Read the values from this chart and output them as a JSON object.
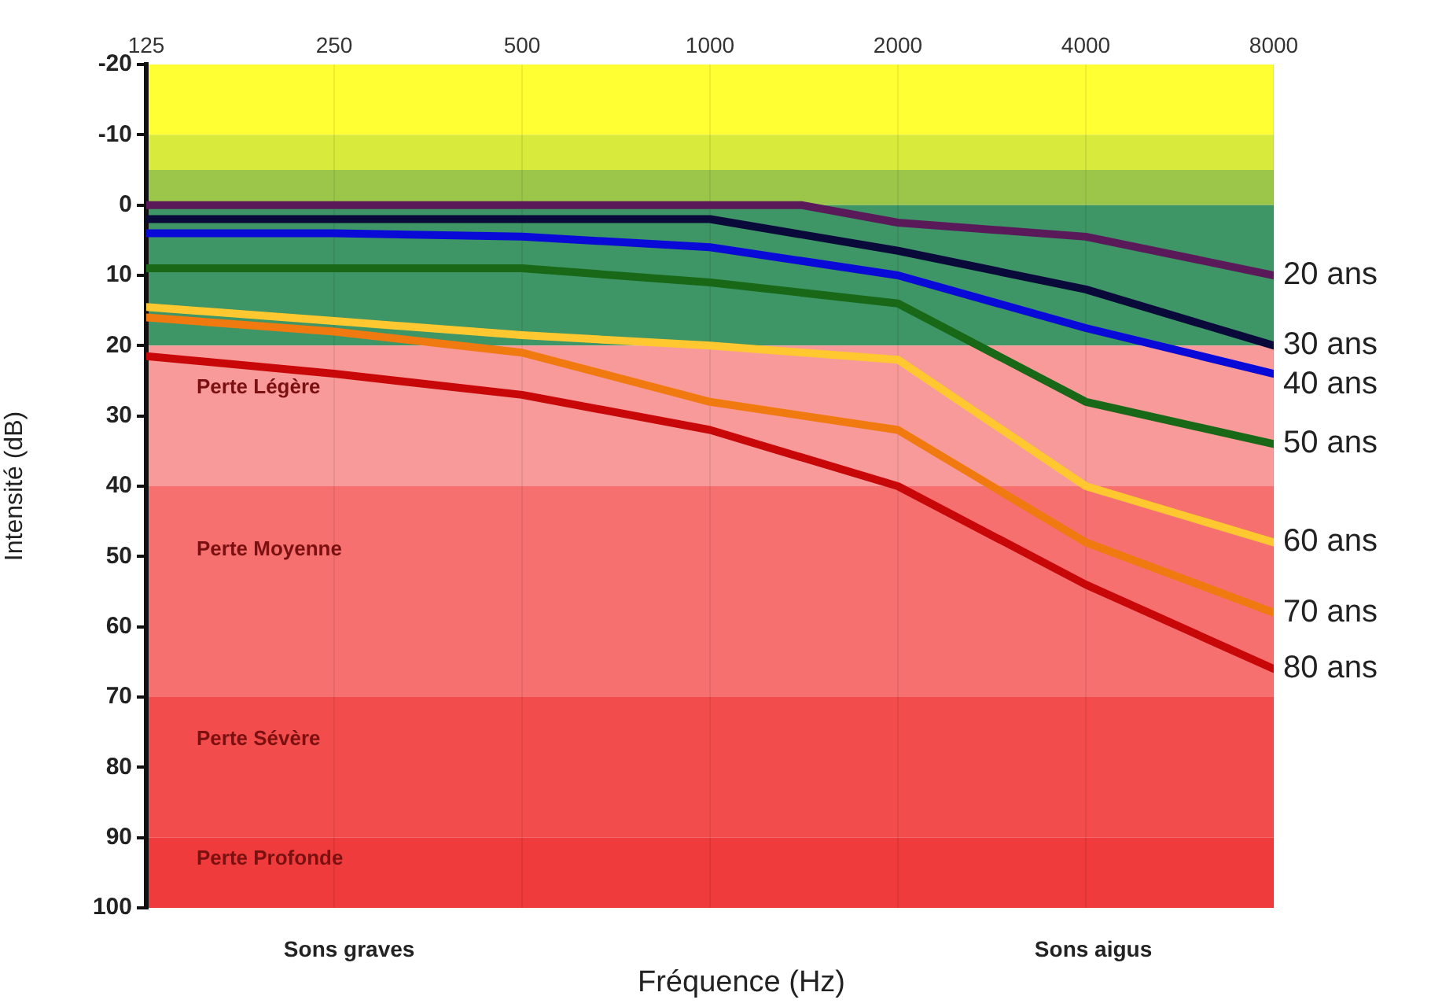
{
  "chart_data": {
    "type": "line",
    "xlabel": "Fréquence (Hz)",
    "ylabel": "Intensité (dB)",
    "x": [
      125,
      250,
      500,
      1000,
      2000,
      4000,
      8000
    ],
    "series": [
      {
        "name": "20 ans",
        "color": "#5a1a5a",
        "x": [
          125,
          250,
          500,
          1000,
          1400,
          2000,
          4000,
          8000
        ],
        "values": [
          0,
          0,
          0,
          0,
          0,
          2.5,
          4.5,
          10
        ]
      },
      {
        "name": "30 ans",
        "color": "#0a0a3a",
        "values": [
          2,
          2,
          2,
          2,
          6.5,
          12,
          20
        ]
      },
      {
        "name": "40 ans",
        "color": "#0a0ad8",
        "values": [
          4,
          4,
          4.5,
          6,
          10,
          17.5,
          24
        ]
      },
      {
        "name": "50 ans",
        "color": "#186818",
        "values": [
          9,
          9,
          9,
          11,
          14,
          28,
          34
        ]
      },
      {
        "name": "60 ans",
        "color": "#ffc830",
        "values": [
          14.5,
          16.5,
          18.5,
          20,
          22,
          40,
          48
        ]
      },
      {
        "name": "70 ans",
        "color": "#f07a10",
        "values": [
          16,
          18,
          21,
          28,
          32,
          48,
          58
        ]
      },
      {
        "name": "80 ans",
        "color": "#c80808",
        "values": [
          21.5,
          24,
          27,
          32,
          40,
          54,
          66
        ]
      }
    ],
    "log": "x",
    "xlim": [
      125,
      8000
    ],
    "xticks": [
      125,
      250,
      500,
      1000,
      2000,
      4000,
      8000
    ],
    "ylim": [
      100,
      -20
    ],
    "yticks": [
      -20,
      -10,
      0,
      10,
      20,
      30,
      40,
      50,
      60,
      70,
      80,
      90,
      100
    ],
    "bands": [
      {
        "axis": "y",
        "from": -20,
        "to": -10,
        "color": "#ffff33"
      },
      {
        "axis": "y",
        "from": -10,
        "to": -5,
        "color": "#d8ea3c"
      },
      {
        "axis": "y",
        "from": -5,
        "to": 0,
        "color": "#9cc64a"
      },
      {
        "axis": "y",
        "from": 0,
        "to": 20,
        "color": "#3e9565"
      },
      {
        "axis": "y",
        "from": 20,
        "to": 40,
        "color": "#f99a9a",
        "label": "Perte Légère"
      },
      {
        "axis": "y",
        "from": 40,
        "to": 70,
        "color": "#f67070",
        "label": "Perte Moyenne"
      },
      {
        "axis": "y",
        "from": 70,
        "to": 90,
        "color": "#f24c4c",
        "label": "Perte Sévère"
      },
      {
        "axis": "y",
        "from": 90,
        "to": 100,
        "color": "#ef3b3b",
        "label": "Perte Profonde"
      }
    ],
    "annotations": [
      "Sons graves",
      "Sons aigus"
    ],
    "grid": "x",
    "legend": false,
    "marker": "none",
    "line_style": "solid"
  }
}
